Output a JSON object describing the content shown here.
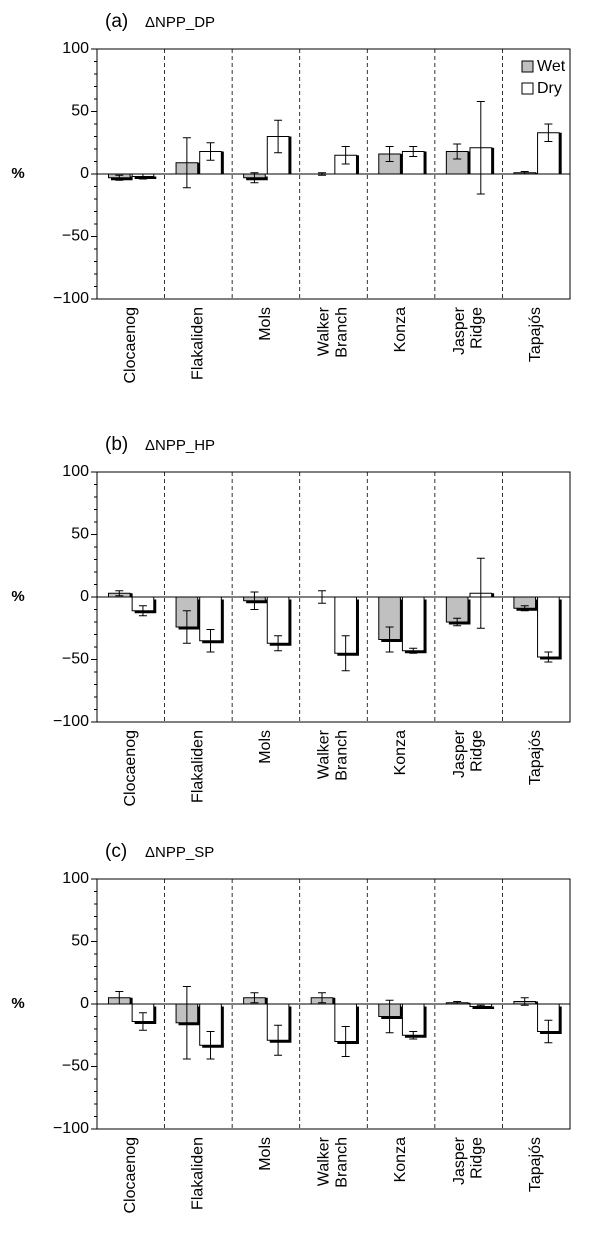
{
  "chart_data": [
    {
      "type": "bar",
      "panel_label": "(a)",
      "title": "ΔNPP_DP",
      "y_label": "%",
      "categories": [
        "Clocaenog",
        "Flakaliden",
        "Mols",
        "Walker Branch",
        "Konza",
        "Jasper Ridge",
        "Tapajós"
      ],
      "series": [
        {
          "name": "Wet",
          "color": "#c0c0c0",
          "values": [
            -3,
            9,
            -3,
            0,
            16,
            18,
            1
          ],
          "errors": [
            2,
            20,
            4,
            1,
            6,
            6,
            1
          ]
        },
        {
          "name": "Dry",
          "color": "#ffffff",
          "values": [
            -2,
            18,
            30,
            15,
            18,
            21,
            33
          ],
          "errors": [
            2,
            7,
            13,
            7,
            4,
            37,
            7
          ]
        }
      ],
      "ylim": [
        -100,
        100
      ],
      "yticks": [
        {
          "value": -100,
          "label": "−100"
        },
        {
          "value": -50,
          "label": "−50"
        },
        0,
        50,
        100
      ],
      "legend": "upper right"
    },
    {
      "type": "bar",
      "panel_label": "(b)",
      "title": "ΔNPP_HP",
      "y_label": "%",
      "categories": [
        "Clocaenog",
        "Flakaliden",
        "Mols",
        "Walker Branch",
        "Konza",
        "Jasper Ridge",
        "Tapajós"
      ],
      "series": [
        {
          "color": "#c0c0c0",
          "values": [
            3,
            -24,
            -3,
            0,
            -34,
            -20,
            -9
          ],
          "errors": [
            2,
            13,
            7,
            5,
            10,
            3,
            2
          ]
        },
        {
          "color": "#ffffff",
          "values": [
            -11,
            -35,
            -37,
            -45,
            -43,
            3,
            -48
          ],
          "errors": [
            4,
            9,
            6,
            14,
            2,
            28,
            4
          ]
        }
      ],
      "ylim": [
        -100,
        100
      ],
      "yticks": [
        {
          "value": -100,
          "label": "−100"
        },
        {
          "value": -50,
          "label": "−50"
        },
        0,
        50,
        100
      ]
    },
    {
      "type": "bar",
      "panel_label": "(c)",
      "title": "ΔNPP_SP",
      "y_label": "%",
      "categories": [
        "Clocaenog",
        "Flakaliden",
        "Mols",
        "Walker Branch",
        "Konza",
        "Jasper Ridge",
        "Tapajós"
      ],
      "series": [
        {
          "color": "#c0c0c0",
          "values": [
            5,
            -15,
            5,
            5,
            -10,
            1,
            2
          ],
          "errors": [
            5,
            29,
            4,
            4,
            13,
            1,
            3
          ]
        },
        {
          "color": "#ffffff",
          "values": [
            -14,
            -33,
            -29,
            -30,
            -25,
            -2,
            -22
          ],
          "errors": [
            7,
            11,
            12,
            12,
            3,
            1,
            9
          ]
        }
      ],
      "ylim": [
        -100,
        100
      ],
      "yticks": [
        {
          "value": -100,
          "label": "−100"
        },
        {
          "value": -50,
          "label": "−50"
        },
        0,
        50,
        100
      ]
    }
  ]
}
